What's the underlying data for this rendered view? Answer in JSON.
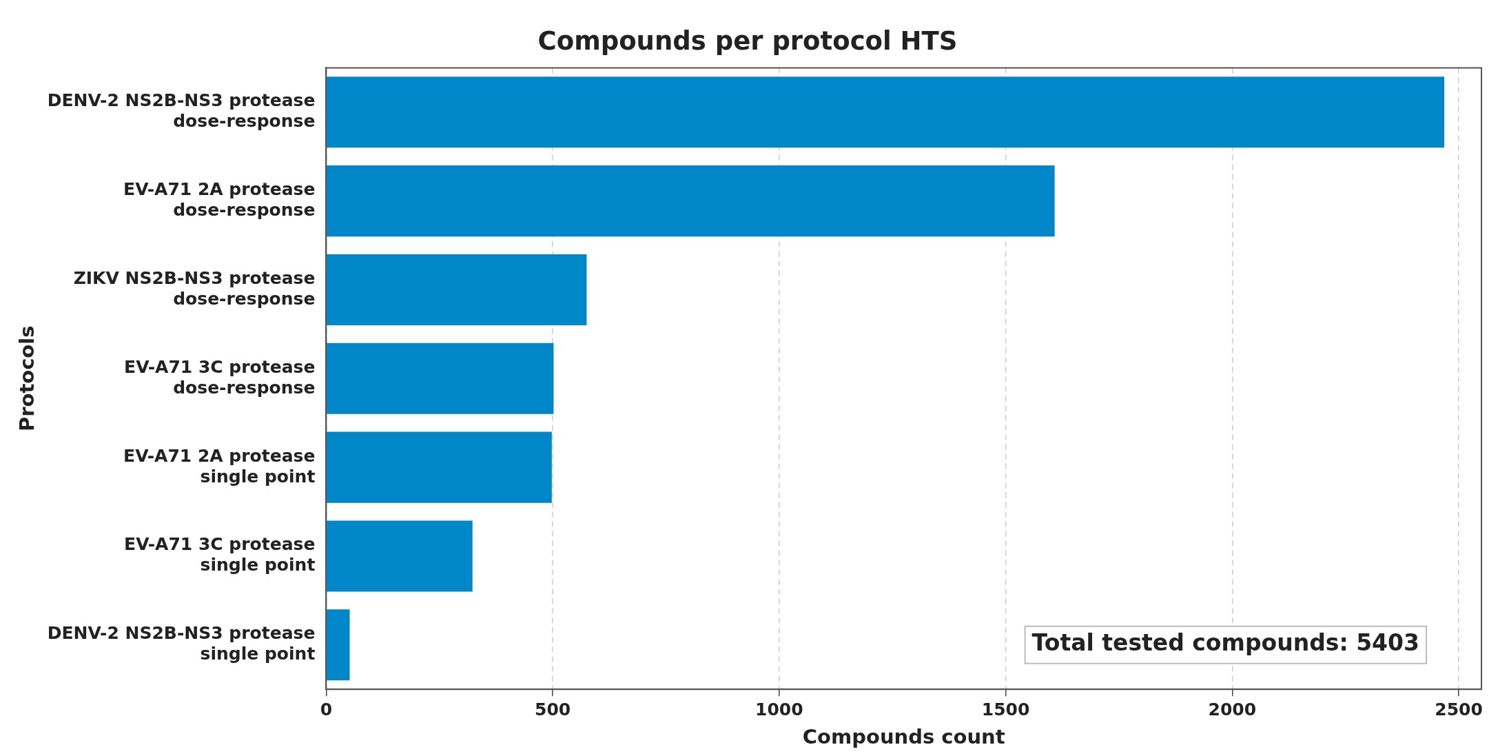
{
  "chart_data": {
    "type": "bar",
    "orientation": "horizontal",
    "title": "Compounds per protocol HTS",
    "xlabel": "Compounds count",
    "ylabel": "Protocols",
    "categories": [
      "DENV-2 NS2B-NS3 protease\ndose-response",
      "EV-A71 2A protease\ndose-response",
      "ZIKV NS2B-NS3 protease\ndose-response",
      "EV-A71 3C protease\ndose-response",
      "EV-A71 2A protease\nsingle point",
      "EV-A71 3C protease\nsingle point",
      "DENV-2 NS2B-NS3 protease\nsingle point"
    ],
    "values": [
      2468,
      1608,
      575,
      502,
      498,
      323,
      52
    ],
    "color": "#0087c9",
    "xlim": [
      0,
      2550
    ],
    "xticks": [
      0,
      500,
      1000,
      1500,
      2000,
      2500
    ],
    "grid": "x",
    "legend": false,
    "annotations": [
      "Total tested compounds: 5403"
    ]
  }
}
